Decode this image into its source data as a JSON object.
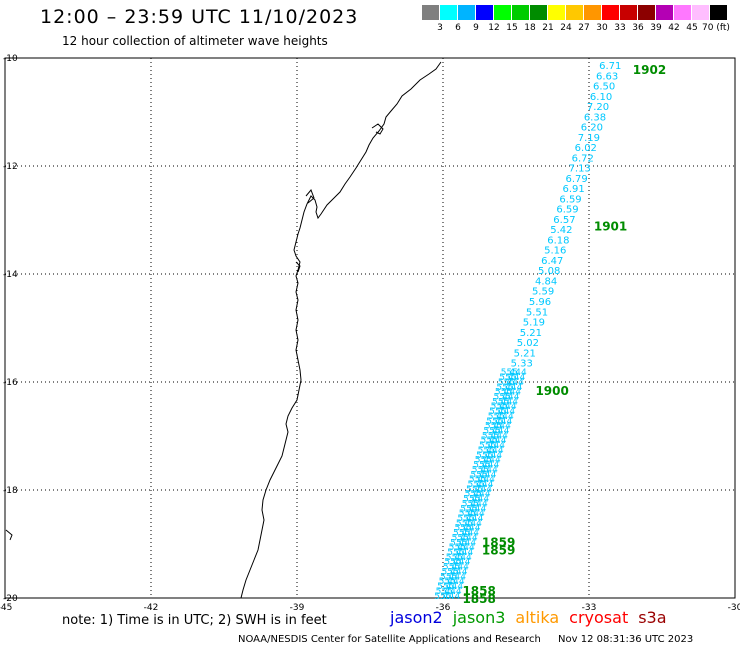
{
  "header": {
    "title": "12:00 – 23:59 UTC 11/10/2023",
    "subtitle": "12 hour collection of altimeter wave heights"
  },
  "color_scale": {
    "labels": [
      "3",
      "6",
      "9",
      "12",
      "15",
      "18",
      "21",
      "24",
      "27",
      "30",
      "33",
      "36",
      "39",
      "42",
      "45",
      "70 (ft)"
    ],
    "colors": [
      "#7f7f7f",
      "#00ffff",
      "#00b4ff",
      "#0000ff",
      "#00ff00",
      "#00cc00",
      "#008c00",
      "#ffff00",
      "#ffc800",
      "#ff9600",
      "#ff0000",
      "#c80000",
      "#8c0000",
      "#b400b4",
      "#ff78ff",
      "#ffbeff",
      "#000000"
    ]
  },
  "map": {
    "lat_labels": [
      "-10",
      "-12",
      "-14",
      "-16",
      "-18",
      "-20"
    ],
    "lon_labels": [
      "-45",
      "-42",
      "-39",
      "-36",
      "-33",
      "-30"
    ],
    "lat_values": [
      -10,
      -12,
      -14,
      -16,
      -18,
      -20
    ],
    "lon_values": [
      -45,
      -42,
      -39,
      -36,
      -33,
      -30
    ],
    "time_labels": [
      {
        "text": "1902",
        "lon": -32.1,
        "lat": -10.2
      },
      {
        "text": "1901",
        "lon": -32.9,
        "lat": -13.1
      },
      {
        "text": "1900",
        "lon": -34.1,
        "lat": -16.15
      },
      {
        "text": "1859",
        "lon": -35.2,
        "lat": -18.95
      },
      {
        "text": "1859",
        "lon": -35.2,
        "lat": -19.1
      },
      {
        "text": "1858",
        "lon": -35.6,
        "lat": -19.85
      },
      {
        "text": "1858",
        "lon": -35.6,
        "lat": -20.0
      }
    ],
    "swh_track": [
      {
        "v": "6.71",
        "lat": -10.13
      },
      {
        "v": "6.63",
        "lat": -10.32
      },
      {
        "v": "6.50",
        "lat": -10.51
      },
      {
        "v": "6.10",
        "lat": -10.7
      },
      {
        "v": "7.20",
        "lat": -10.89
      },
      {
        "v": "6.38",
        "lat": -11.08
      },
      {
        "v": "6.20",
        "lat": -11.27
      },
      {
        "v": "7.19",
        "lat": -11.46
      },
      {
        "v": "6.02",
        "lat": -11.65
      },
      {
        "v": "6.72",
        "lat": -11.84
      },
      {
        "v": "7.13",
        "lat": -12.03
      },
      {
        "v": "6.79",
        "lat": -12.22
      },
      {
        "v": "6.91",
        "lat": -12.41
      },
      {
        "v": "6.59",
        "lat": -12.6
      },
      {
        "v": "6.59",
        "lat": -12.79
      },
      {
        "v": "6.57",
        "lat": -12.98
      },
      {
        "v": "5.42",
        "lat": -13.17
      },
      {
        "v": "6.18",
        "lat": -13.36
      },
      {
        "v": "5.16",
        "lat": -13.55
      },
      {
        "v": "6.47",
        "lat": -13.74
      },
      {
        "v": "5.08",
        "lat": -13.93
      },
      {
        "v": "4.84",
        "lat": -14.12
      },
      {
        "v": "5.59",
        "lat": -14.31
      },
      {
        "v": "5.96",
        "lat": -14.5
      },
      {
        "v": "5.51",
        "lat": -14.69
      },
      {
        "v": "5.19",
        "lat": -14.88
      },
      {
        "v": "5.21",
        "lat": -15.07
      },
      {
        "v": "5.02",
        "lat": -15.26
      },
      {
        "v": "5.21",
        "lat": -15.45
      },
      {
        "v": "5.33",
        "lat": -15.64
      }
    ],
    "swh_dense_lines": 3
  },
  "note": "note: 1) Time is in UTC; 2) SWH is in feet",
  "satellites": [
    {
      "name": "jason2",
      "color": "#0000dd"
    },
    {
      "name": "jason3",
      "color": "#009900"
    },
    {
      "name": "altika",
      "color": "#ff9900"
    },
    {
      "name": "cryosat",
      "color": "#ff0000"
    },
    {
      "name": "s3a",
      "color": "#990000"
    }
  ],
  "footer": {
    "credit": "NOAA/NESDIS Center for Satellite Applications and Research",
    "timestamp": "Nov 12 08:31:36 UTC 2023"
  }
}
